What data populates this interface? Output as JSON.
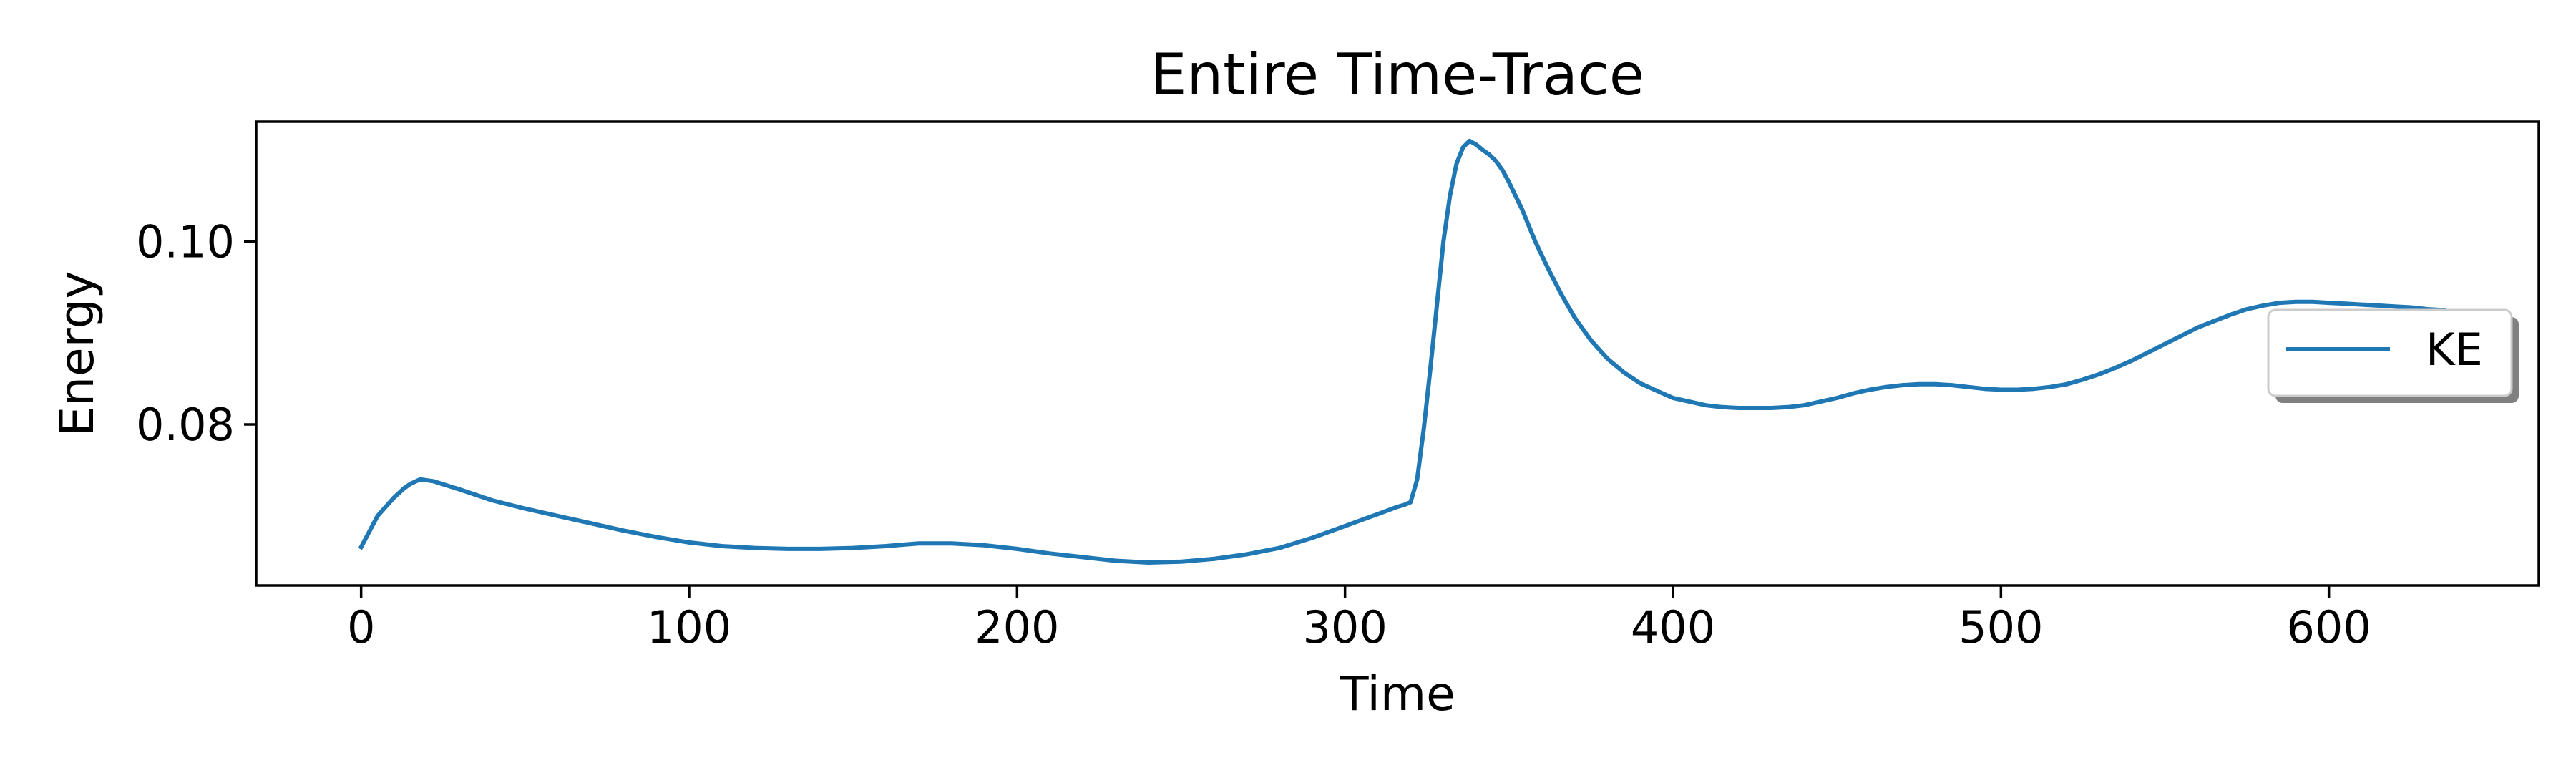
{
  "chart_data": {
    "type": "line",
    "title": "Entire Time-Trace",
    "xlabel": "Time",
    "ylabel": "Energy",
    "xlim": [
      -32,
      664
    ],
    "ylim": [
      0.0624,
      0.1131
    ],
    "xticks": [
      0,
      100,
      200,
      300,
      400,
      500,
      600
    ],
    "xtick_labels": [
      "0",
      "100",
      "200",
      "300",
      "400",
      "500",
      "600"
    ],
    "yticks": [
      0.08,
      0.1
    ],
    "ytick_labels": [
      "0.08",
      "0.10"
    ],
    "grid": false,
    "legend": {
      "position": "right",
      "entries": [
        "KE"
      ]
    },
    "series": [
      {
        "name": "KE",
        "color": "#1f77b4",
        "x": [
          0,
          5,
          10,
          13,
          15,
          18,
          22,
          30,
          40,
          50,
          60,
          70,
          80,
          90,
          100,
          110,
          120,
          130,
          140,
          150,
          160,
          170,
          180,
          190,
          200,
          210,
          220,
          230,
          240,
          250,
          260,
          270,
          280,
          290,
          300,
          310,
          316,
          318,
          320,
          322,
          324,
          326,
          328,
          330,
          332,
          334,
          336,
          338,
          340,
          342,
          344,
          346,
          348,
          350,
          354,
          358,
          362,
          366,
          370,
          375,
          380,
          385,
          390,
          395,
          400,
          405,
          410,
          415,
          420,
          425,
          430,
          435,
          440,
          445,
          450,
          455,
          460,
          465,
          470,
          475,
          480,
          485,
          490,
          495,
          500,
          505,
          510,
          515,
          520,
          525,
          530,
          535,
          540,
          545,
          550,
          555,
          560,
          565,
          570,
          575,
          580,
          585,
          590,
          595,
          600,
          605,
          610,
          615,
          620,
          625,
          630,
          635
        ],
        "y": [
          0.0666,
          0.07,
          0.072,
          0.073,
          0.0735,
          0.074,
          0.0738,
          0.0729,
          0.0717,
          0.0708,
          0.07,
          0.0692,
          0.0684,
          0.0677,
          0.0671,
          0.0667,
          0.0665,
          0.0664,
          0.0664,
          0.0665,
          0.0667,
          0.067,
          0.067,
          0.0668,
          0.0664,
          0.0659,
          0.0655,
          0.0651,
          0.0649,
          0.065,
          0.0653,
          0.0658,
          0.0665,
          0.0676,
          0.0689,
          0.0702,
          0.071,
          0.0712,
          0.0715,
          0.074,
          0.0795,
          0.086,
          0.093,
          0.1,
          0.105,
          0.1085,
          0.1103,
          0.111,
          0.1106,
          0.11,
          0.1095,
          0.1088,
          0.1078,
          0.1065,
          0.1035,
          0.1,
          0.097,
          0.0942,
          0.0917,
          0.0892,
          0.0872,
          0.0857,
          0.0845,
          0.0837,
          0.0829,
          0.0825,
          0.0821,
          0.0819,
          0.0818,
          0.0818,
          0.0818,
          0.0819,
          0.0821,
          0.0825,
          0.0829,
          0.0834,
          0.0838,
          0.0841,
          0.0843,
          0.0844,
          0.0844,
          0.0843,
          0.0841,
          0.0839,
          0.0838,
          0.0838,
          0.0839,
          0.0841,
          0.0844,
          0.0849,
          0.0855,
          0.0862,
          0.087,
          0.0879,
          0.0888,
          0.0897,
          0.0906,
          0.0913,
          0.092,
          0.0926,
          0.093,
          0.0933,
          0.0934,
          0.0934,
          0.0933,
          0.0932,
          0.0931,
          0.093,
          0.0929,
          0.0928,
          0.0926,
          0.0925
        ]
      }
    ]
  }
}
